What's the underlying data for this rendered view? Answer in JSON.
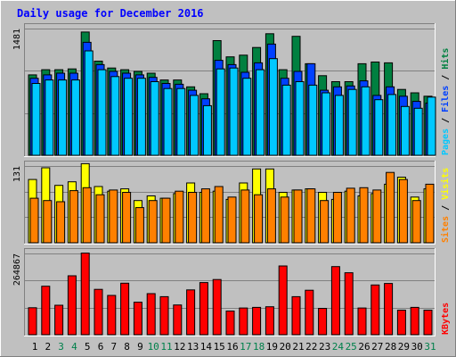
{
  "chart_data": [
    {
      "type": "bar",
      "title": "Daily usage for December 2016",
      "panel": "hits-files-pages",
      "ylabel_parts": [
        "Pages",
        "Files",
        "Hits"
      ],
      "ymax_label": "1481",
      "ylim": [
        0,
        1481
      ],
      "categories": [
        "1",
        "2",
        "3",
        "4",
        "5",
        "6",
        "7",
        "8",
        "9",
        "10",
        "11",
        "12",
        "13",
        "14",
        "15",
        "16",
        "17",
        "18",
        "19",
        "20",
        "21",
        "22",
        "23",
        "24",
        "25",
        "26",
        "27",
        "28",
        "29",
        "30",
        "31"
      ],
      "series": [
        {
          "name": "Hits",
          "values": [
            940,
            1000,
            1000,
            1010,
            1440,
            1100,
            1020,
            1000,
            980,
            960,
            880,
            880,
            800,
            720,
            1340,
            1150,
            1170,
            1260,
            1420,
            1000,
            1390,
            1070,
            930,
            860,
            860,
            1070,
            1090,
            1080,
            770,
            730,
            690
          ]
        },
        {
          "name": "Files",
          "values": [
            900,
            940,
            960,
            960,
            1320,
            1060,
            980,
            960,
            940,
            910,
            840,
            830,
            760,
            660,
            1110,
            1060,
            970,
            1080,
            1300,
            900,
            980,
            1070,
            760,
            800,
            810,
            870,
            700,
            800,
            690,
            630,
            610
          ]
        },
        {
          "name": "Pages",
          "values": [
            840,
            880,
            880,
            880,
            1220,
            1000,
            920,
            900,
            900,
            860,
            780,
            780,
            700,
            580,
            1010,
            1020,
            900,
            1000,
            1130,
            820,
            860,
            820,
            730,
            700,
            770,
            800,
            650,
            710,
            570,
            550,
            680
          ]
        }
      ],
      "colors": {
        "Hits": "#008040",
        "Files": "#0040ff",
        "Pages": "#00c8ff"
      }
    },
    {
      "type": "bar",
      "panel": "sites-visits",
      "ylabel_parts": [
        "Sites",
        "Visits"
      ],
      "ymax_label": "131",
      "ylim": [
        0,
        131
      ],
      "categories": [
        "1",
        "2",
        "3",
        "4",
        "5",
        "6",
        "7",
        "8",
        "9",
        "10",
        "11",
        "12",
        "13",
        "14",
        "15",
        "16",
        "17",
        "18",
        "19",
        "20",
        "21",
        "22",
        "23",
        "24",
        "25",
        "26",
        "27",
        "28",
        "29",
        "30",
        "31"
      ],
      "series": [
        {
          "name": "Visits",
          "values": [
            108,
            128,
            98,
            104,
            135,
            96,
            88,
            92,
            72,
            80,
            76,
            84,
            102,
            86,
            88,
            74,
            102,
            126,
            126,
            86,
            90,
            92,
            86,
            74,
            88,
            80,
            84,
            100,
            112,
            78,
            92
          ]
        },
        {
          "name": "Sites",
          "values": [
            76,
            72,
            70,
            89,
            94,
            82,
            90,
            86,
            60,
            72,
            76,
            88,
            86,
            92,
            96,
            78,
            90,
            82,
            92,
            78,
            90,
            92,
            72,
            86,
            93,
            94,
            90,
            120,
            108,
            72,
            100
          ]
        }
      ],
      "colors": {
        "Visits": "#ffff00",
        "Sites": "#ff8000"
      }
    },
    {
      "type": "bar",
      "panel": "kbytes",
      "ylabel_parts": [
        "KBytes"
      ],
      "ymax_label": "264867",
      "ylim": [
        0,
        264867
      ],
      "categories": [
        "1",
        "2",
        "3",
        "4",
        "5",
        "6",
        "7",
        "8",
        "9",
        "10",
        "11",
        "12",
        "13",
        "14",
        "15",
        "16",
        "17",
        "18",
        "19",
        "20",
        "21",
        "22",
        "23",
        "24",
        "25",
        "26",
        "27",
        "28",
        "29",
        "30",
        "31"
      ],
      "series": [
        {
          "name": "KBytes",
          "values": [
            88000,
            158000,
            96000,
            192000,
            266000,
            148000,
            128000,
            168000,
            106000,
            134000,
            124000,
            97000,
            146000,
            170000,
            180000,
            77000,
            87000,
            89000,
            91000,
            224000,
            124000,
            145000,
            86000,
            222000,
            202000,
            87000,
            162000,
            167000,
            80000,
            89000,
            80000
          ]
        }
      ],
      "colors": {
        "KBytes": "#ff0000"
      }
    }
  ],
  "weekend_days": [
    "3",
    "4",
    "10",
    "11",
    "17",
    "18",
    "24",
    "25",
    "31"
  ],
  "colors": {
    "background": "#c0c0c0",
    "title": "#0000ff",
    "grid": "#808080",
    "weekday_label": "#000000",
    "weekend_label": "#00804b"
  }
}
